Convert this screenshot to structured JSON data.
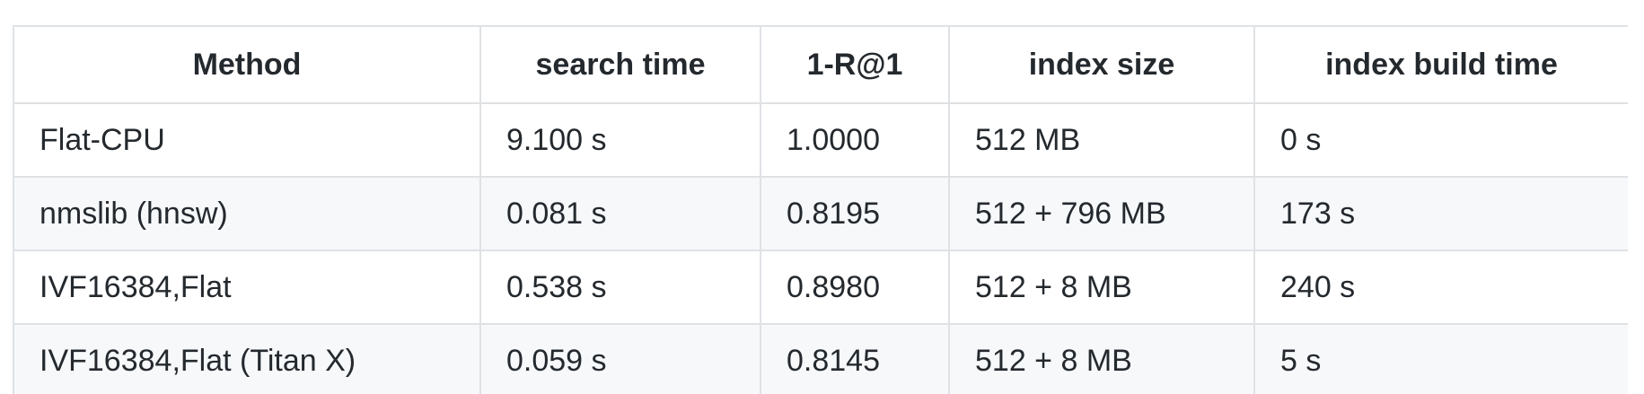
{
  "table": {
    "headers": [
      "Method",
      "search time",
      "1-R@1",
      "index size",
      "index build time"
    ],
    "rows": [
      [
        "Flat-CPU",
        "9.100 s",
        "1.0000",
        "512 MB",
        "0 s"
      ],
      [
        "nmslib (hnsw)",
        "0.081 s",
        "0.8195",
        "512 + 796 MB",
        "173 s"
      ],
      [
        "IVF16384,Flat",
        "0.538 s",
        "0.8980",
        "512 + 8 MB",
        "240 s"
      ],
      [
        "IVF16384,Flat (Titan X)",
        "0.059 s",
        "0.8145",
        "512 + 8 MB",
        "5 s"
      ]
    ]
  }
}
